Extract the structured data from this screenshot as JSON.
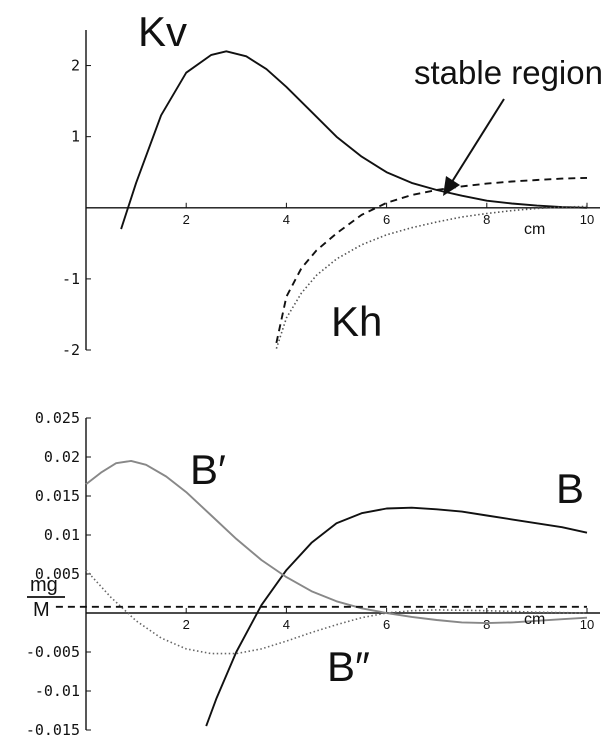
{
  "chart_data": [
    {
      "type": "line",
      "xlim": [
        0,
        10
      ],
      "ylim": [
        -2,
        2.5
      ],
      "xticks": [
        2,
        4,
        6,
        8,
        10
      ],
      "yticks": [
        -2,
        -1,
        1,
        2
      ],
      "x_unit_label": "cm",
      "annotations": {
        "stable_region": "stable region"
      },
      "series": [
        {
          "name": "Kv",
          "style": "solid",
          "color": "#111111",
          "points": [
            [
              0.7,
              -0.3
            ],
            [
              1.0,
              0.35
            ],
            [
              1.5,
              1.3
            ],
            [
              2.0,
              1.9
            ],
            [
              2.5,
              2.15
            ],
            [
              2.8,
              2.2
            ],
            [
              3.2,
              2.13
            ],
            [
              3.6,
              1.95
            ],
            [
              4.0,
              1.7
            ],
            [
              4.5,
              1.35
            ],
            [
              5.0,
              1.0
            ],
            [
              5.5,
              0.72
            ],
            [
              6.0,
              0.5
            ],
            [
              6.5,
              0.35
            ],
            [
              7.0,
              0.25
            ],
            [
              7.5,
              0.17
            ],
            [
              8.0,
              0.1
            ],
            [
              8.5,
              0.06
            ],
            [
              9.0,
              0.03
            ],
            [
              9.5,
              0.01
            ],
            [
              10.0,
              0.0
            ]
          ]
        },
        {
          "name": "Kh",
          "style": "dotted",
          "color": "#555555",
          "points": [
            [
              3.8,
              -1.98
            ],
            [
              4.0,
              -1.55
            ],
            [
              4.3,
              -1.2
            ],
            [
              4.6,
              -0.95
            ],
            [
              5.0,
              -0.72
            ],
            [
              5.5,
              -0.52
            ],
            [
              6.0,
              -0.38
            ],
            [
              6.5,
              -0.28
            ],
            [
              7.0,
              -0.2
            ],
            [
              7.5,
              -0.13
            ],
            [
              8.0,
              -0.08
            ],
            [
              8.5,
              -0.04
            ],
            [
              9.0,
              -0.01
            ],
            [
              9.5,
              0.01
            ],
            [
              10.0,
              0.02
            ]
          ]
        },
        {
          "name": "",
          "style": "dashed",
          "color": "#111111",
          "points": [
            [
              3.8,
              -1.9
            ],
            [
              4.0,
              -1.25
            ],
            [
              4.3,
              -0.85
            ],
            [
              4.6,
              -0.6
            ],
            [
              5.0,
              -0.36
            ],
            [
              5.5,
              -0.1
            ],
            [
              6.0,
              0.07
            ],
            [
              6.5,
              0.18
            ],
            [
              7.0,
              0.25
            ],
            [
              7.5,
              0.3
            ],
            [
              8.0,
              0.34
            ],
            [
              8.5,
              0.37
            ],
            [
              9.0,
              0.39
            ],
            [
              9.5,
              0.41
            ],
            [
              10.0,
              0.42
            ]
          ]
        }
      ]
    },
    {
      "type": "line",
      "xlim": [
        0,
        10
      ],
      "ylim": [
        -0.015,
        0.025
      ],
      "xticks": [
        2,
        4,
        6,
        8,
        10
      ],
      "yticks": [
        -0.015,
        -0.01,
        -0.005,
        0.005,
        0.01,
        0.015,
        0.02,
        0.025
      ],
      "ytick_labels": [
        "-0.015",
        "-0.01",
        "-0.005",
        "0.005",
        "0.01",
        "0.015",
        "0.02",
        "0.025"
      ],
      "x_unit_label": "cm",
      "annotations": {
        "mg_numerator": "mg",
        "mg_denominator": "M"
      },
      "series": [
        {
          "name": "B",
          "style": "solid",
          "color": "#111111",
          "points": [
            [
              2.4,
              -0.0145
            ],
            [
              2.6,
              -0.011
            ],
            [
              3.0,
              -0.005
            ],
            [
              3.5,
              0.001
            ],
            [
              4.0,
              0.0055
            ],
            [
              4.5,
              0.009
            ],
            [
              5.0,
              0.0115
            ],
            [
              5.5,
              0.0128
            ],
            [
              6.0,
              0.0134
            ],
            [
              6.5,
              0.0135
            ],
            [
              7.0,
              0.0133
            ],
            [
              7.5,
              0.013
            ],
            [
              8.0,
              0.0125
            ],
            [
              8.5,
              0.012
            ],
            [
              9.0,
              0.0115
            ],
            [
              9.5,
              0.011
            ],
            [
              10.0,
              0.0103
            ]
          ]
        },
        {
          "name": "B′",
          "style": "solid",
          "color": "#888888",
          "points": [
            [
              0.0,
              0.0165
            ],
            [
              0.3,
              0.018
            ],
            [
              0.6,
              0.0192
            ],
            [
              0.9,
              0.0195
            ],
            [
              1.2,
              0.019
            ],
            [
              1.6,
              0.0175
            ],
            [
              2.0,
              0.0155
            ],
            [
              2.5,
              0.0125
            ],
            [
              3.0,
              0.0095
            ],
            [
              3.5,
              0.0068
            ],
            [
              4.0,
              0.0046
            ],
            [
              4.5,
              0.0028
            ],
            [
              5.0,
              0.0015
            ],
            [
              5.5,
              0.0006
            ],
            [
              6.0,
              0.0
            ],
            [
              6.5,
              -0.0005
            ],
            [
              7.0,
              -0.0009
            ],
            [
              7.5,
              -0.0012
            ],
            [
              8.0,
              -0.0013
            ],
            [
              8.5,
              -0.0012
            ],
            [
              9.0,
              -0.001
            ],
            [
              9.5,
              -0.0008
            ],
            [
              10.0,
              -0.0006
            ]
          ]
        },
        {
          "name": "B″",
          "style": "dotted",
          "color": "#666666",
          "points": [
            [
              0.0,
              0.0055
            ],
            [
              0.5,
              0.002
            ],
            [
              1.0,
              -0.001
            ],
            [
              1.5,
              -0.0032
            ],
            [
              2.0,
              -0.0046
            ],
            [
              2.5,
              -0.0052
            ],
            [
              3.0,
              -0.0052
            ],
            [
              3.5,
              -0.0046
            ],
            [
              4.0,
              -0.0036
            ],
            [
              4.5,
              -0.0025
            ],
            [
              5.0,
              -0.0015
            ],
            [
              5.5,
              -0.0006
            ],
            [
              6.0,
              0.0
            ],
            [
              6.5,
              0.0003
            ],
            [
              7.0,
              0.0004
            ],
            [
              8.0,
              0.0003
            ],
            [
              9.0,
              0.0001
            ],
            [
              10.0,
              0.0
            ]
          ]
        },
        {
          "name": "",
          "style": "dashed",
          "color": "#111111",
          "points": [
            [
              -0.6,
              0.0008
            ],
            [
              10.0,
              0.0008
            ]
          ]
        }
      ]
    }
  ]
}
